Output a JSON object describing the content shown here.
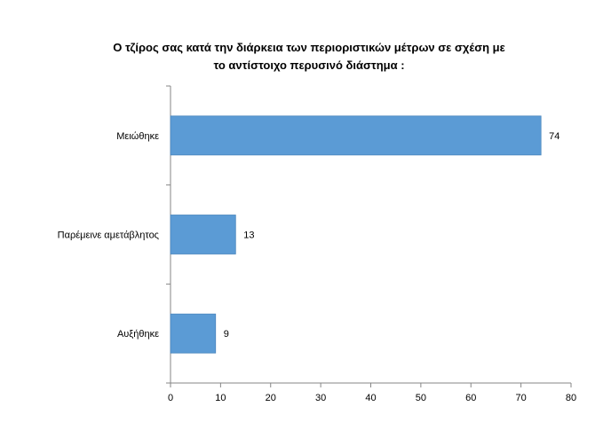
{
  "chart_data": {
    "type": "bar",
    "orientation": "horizontal",
    "title_lines": [
      "Ο τζίρος σας κατά την διάρκεια των περιοριστικών μέτρων  σε σχέση με",
      "το αντίστοιχο περυσινό διάστημα :"
    ],
    "categories": [
      "Μειώθηκε",
      "Παρέμεινε αμετάβλητος",
      "Αυξήθηκε"
    ],
    "values": [
      74,
      13,
      9
    ],
    "xlim": [
      0,
      80
    ],
    "x_ticks": [
      0,
      10,
      20,
      30,
      40,
      50,
      60,
      70,
      80
    ],
    "xlabel": "",
    "ylabel": "",
    "grid": false,
    "legend": "none",
    "bar_color": "#5B9BD5"
  }
}
